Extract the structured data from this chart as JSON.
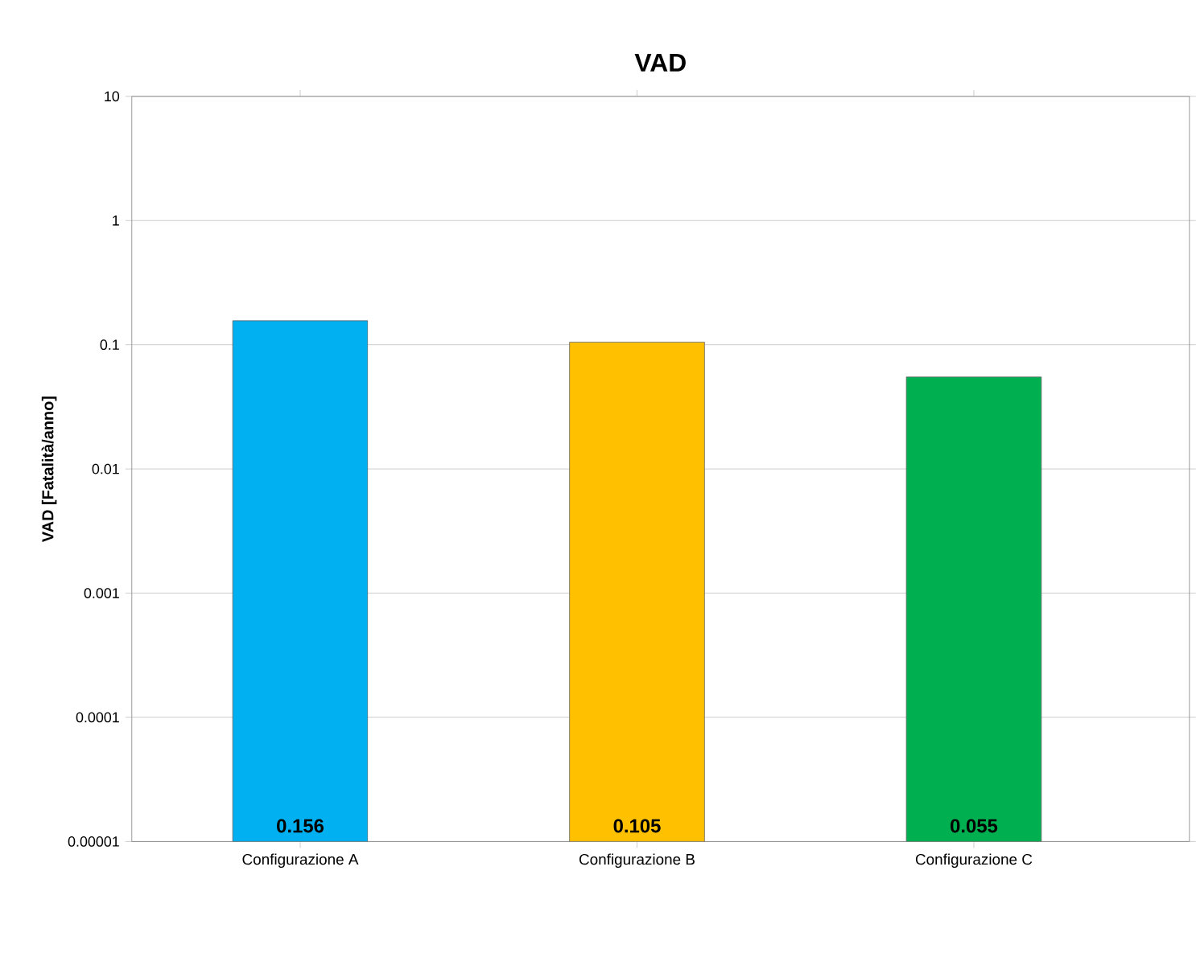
{
  "chart_data": {
    "type": "bar",
    "title": "VAD",
    "ylabel": "VAD [Fatalità/anno]",
    "categories": [
      "Configurazione A",
      "Configurazione B",
      "Configurazione C"
    ],
    "values": [
      0.156,
      0.105,
      0.055
    ],
    "colors": [
      "#00b0f0",
      "#ffc000",
      "#00b050"
    ],
    "value_labels": [
      "0.156",
      "0.105",
      "0.055"
    ],
    "log": "y",
    "ylim": [
      1e-05,
      10
    ],
    "yticks": [
      {
        "value": 1e-05,
        "label": "0.00001"
      },
      {
        "value": 0.0001,
        "label": "0.0001"
      },
      {
        "value": 0.001,
        "label": "0.001"
      },
      {
        "value": 0.01,
        "label": "0.01"
      },
      {
        "value": 0.1,
        "label": "0.1"
      },
      {
        "value": 1,
        "label": "1"
      },
      {
        "value": 10,
        "label": "10"
      }
    ],
    "grid": "y"
  }
}
